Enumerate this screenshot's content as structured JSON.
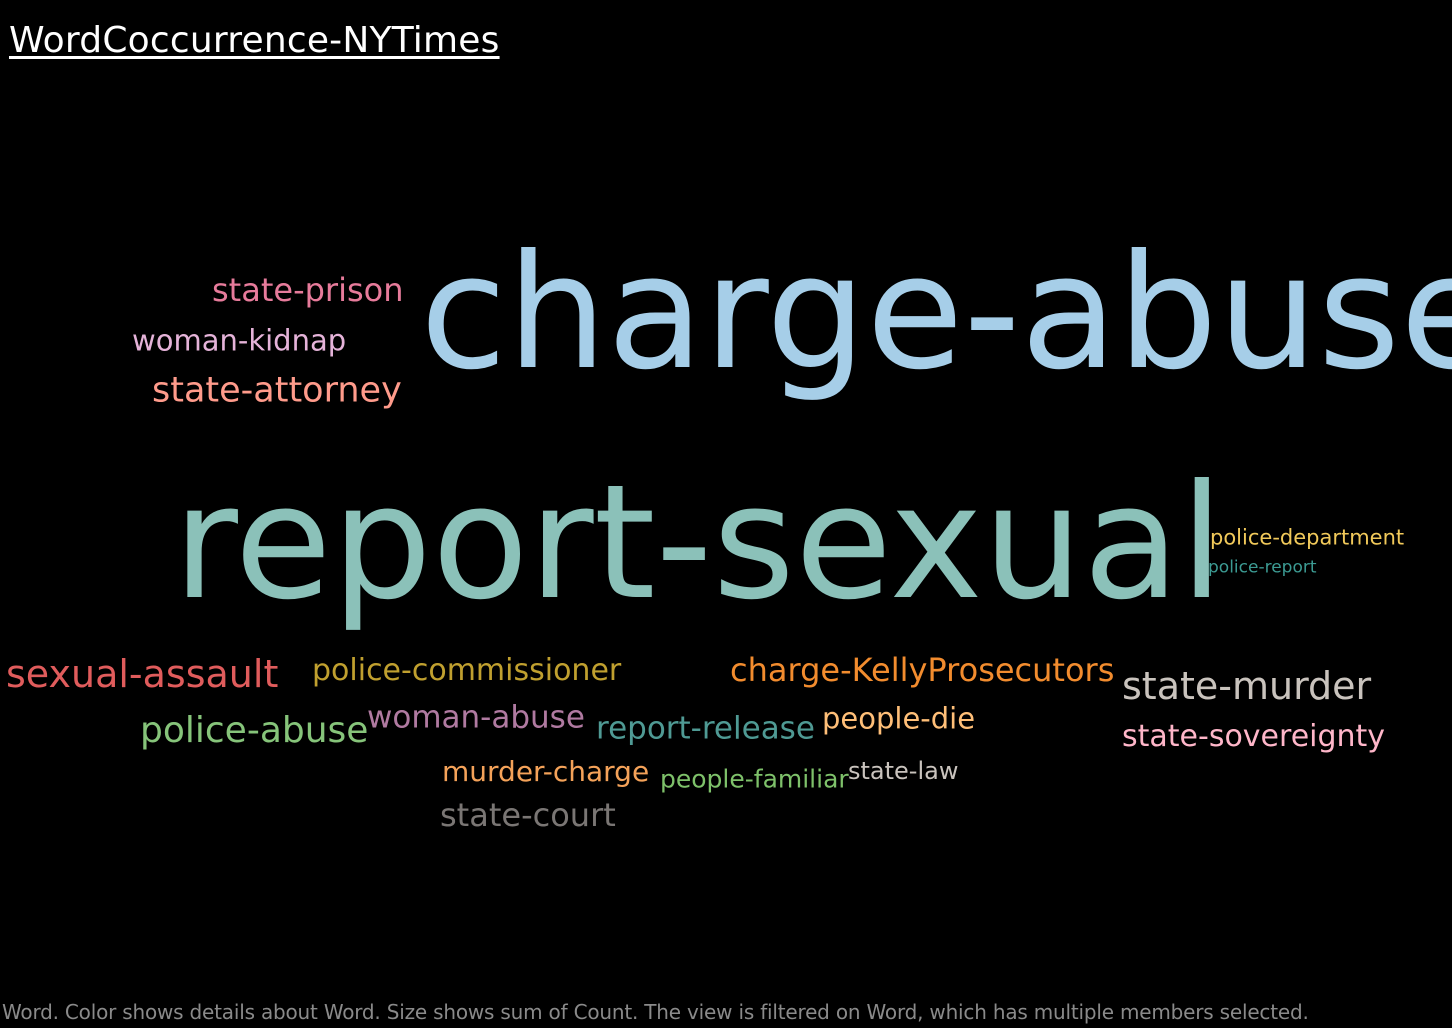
{
  "title": "WordCoccurrence-NYTimes",
  "footer": "Word.  Color shows details about Word.  Size shows sum of Count. The view is filtered on Word, which has multiple members selected.",
  "chart_data": {
    "type": "wordcloud",
    "title": "WordCoccurrence-NYTimes",
    "color_encodes": "Word",
    "size_encodes": "sum of Count",
    "words": [
      {
        "word": "charge-abuse",
        "count": 100,
        "color": "#a6cee8"
      },
      {
        "word": "report-sexual",
        "count": 100,
        "color": "#8bc1b9"
      },
      {
        "word": "state-prison",
        "count": 6,
        "color": "#e77b9b"
      },
      {
        "word": "woman-kidnap",
        "count": 5,
        "color": "#e5b3d9"
      },
      {
        "word": "state-attorney",
        "count": 7,
        "color": "#ff9b8b"
      },
      {
        "word": "police-department",
        "count": 4,
        "color": "#f1c95a"
      },
      {
        "word": "police-report",
        "count": 3,
        "color": "#3c9b93"
      },
      {
        "word": "sexual-assault",
        "count": 8,
        "color": "#e05c5c"
      },
      {
        "word": "police-commissioner",
        "count": 6,
        "color": "#c0a02f"
      },
      {
        "word": "charge-KellyProsecutors",
        "count": 7,
        "color": "#f28c2e"
      },
      {
        "word": "state-murder",
        "count": 8,
        "color": "#c9c3bd"
      },
      {
        "word": "police-abuse",
        "count": 8,
        "color": "#86c47a"
      },
      {
        "word": "woman-abuse",
        "count": 6,
        "color": "#b07aa1"
      },
      {
        "word": "report-release",
        "count": 6,
        "color": "#4f9a94"
      },
      {
        "word": "people-die",
        "count": 6,
        "color": "#ffbf78"
      },
      {
        "word": "state-sovereignty",
        "count": 6,
        "color": "#ffb6c9"
      },
      {
        "word": "murder-charge",
        "count": 6,
        "color": "#f4a259"
      },
      {
        "word": "people-familiar",
        "count": 5,
        "color": "#7ec16a"
      },
      {
        "word": "state-law",
        "count": 5,
        "color": "#c9c3bd"
      },
      {
        "word": "state-court",
        "count": 6,
        "color": "#7a7674"
      }
    ]
  }
}
